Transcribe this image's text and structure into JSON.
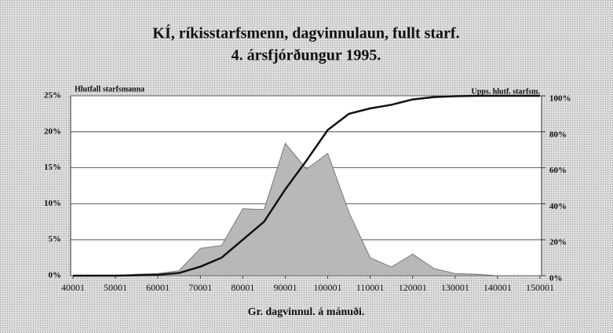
{
  "chart_data": {
    "type": "combo",
    "title": [
      "KÍ, ríkisstarfsmenn, dagvinnulaun, fullt starf.",
      "4. ársfjórðungur 1995."
    ],
    "x_label": "Gr. dagvinnul. á mánuði.",
    "y_label": "Hlutfall starfsmanna",
    "y2_label": "Upps. hlutf. starfsm.",
    "x": [
      40001,
      45001,
      50001,
      55001,
      60001,
      65001,
      70001,
      75001,
      80001,
      85001,
      90001,
      95001,
      100001,
      105001,
      110001,
      115001,
      120001,
      125001,
      130001,
      135001,
      140001,
      145001,
      150001
    ],
    "xlim": [
      40001,
      150001
    ],
    "xticks": [
      40001,
      50001,
      60001,
      70001,
      80001,
      90001,
      100001,
      110001,
      120001,
      130001,
      140001,
      150001
    ],
    "ylim": [
      0,
      25
    ],
    "yticks": [
      {
        "value": 0,
        "label": "0%"
      },
      {
        "value": 5,
        "label": "5%"
      },
      {
        "value": 10,
        "label": "10%"
      },
      {
        "value": 15,
        "label": "15%"
      },
      {
        "value": 20,
        "label": "20%"
      },
      {
        "value": 25,
        "label": "25%"
      }
    ],
    "y2lim": [
      0,
      100
    ],
    "y2ticks": [
      {
        "value": 0,
        "label": "0%"
      },
      {
        "value": 20,
        "label": "20%"
      },
      {
        "value": 40,
        "label": "40%"
      },
      {
        "value": 60,
        "label": "60%"
      },
      {
        "value": 80,
        "label": "80%"
      },
      {
        "value": 100,
        "label": "100%"
      }
    ],
    "grid": true,
    "series": [
      {
        "type": "area",
        "color": "#b8b8b8",
        "values": [
          0,
          0,
          0,
          0.2,
          0.3,
          0.7,
          3.8,
          4.2,
          9.3,
          9.2,
          18.4,
          14.8,
          17,
          8.8,
          2.5,
          1.2,
          3,
          1,
          0.3,
          0.2,
          0,
          0,
          0
        ]
      },
      {
        "type": "line",
        "axis": "y2",
        "color": "#111111",
        "values": [
          0,
          0,
          0,
          0.2,
          0.5,
          1.5,
          5,
          10,
          20,
          30,
          48,
          64,
          81,
          90,
          93,
          95,
          98,
          99.3,
          99.8,
          100,
          100,
          100,
          100
        ]
      }
    ]
  }
}
